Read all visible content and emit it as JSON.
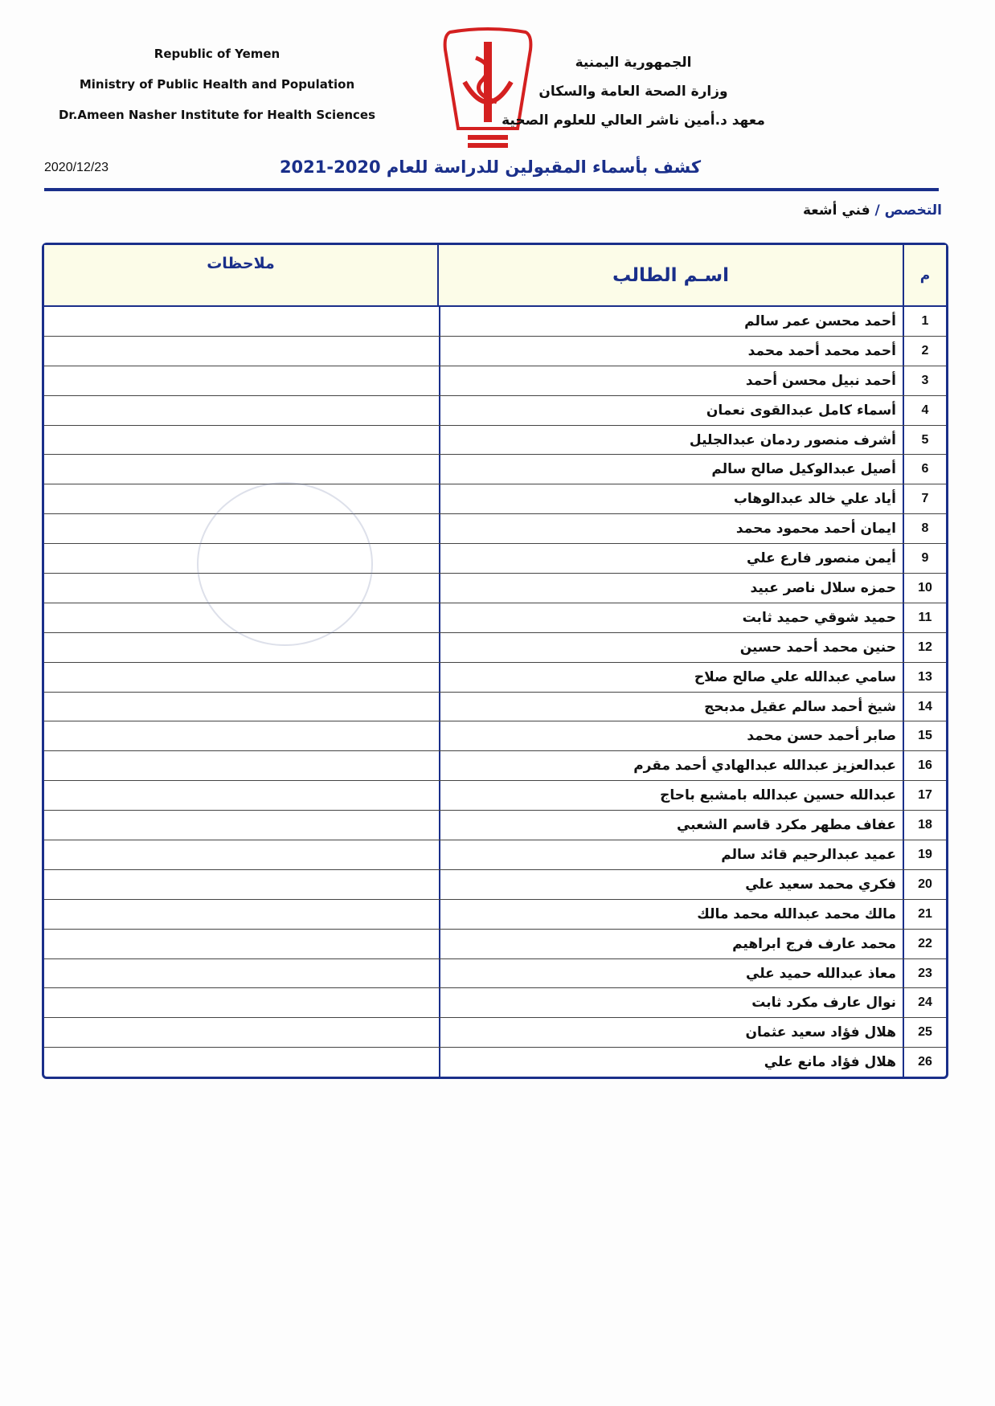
{
  "header": {
    "english": [
      "Republic of Yemen",
      "Ministry of Public Health and Population",
      "Dr.Ameen Nasher Institute for Health Sciences"
    ],
    "arabic": [
      "الجمهورية اليمنية",
      "وزارة الصحة العامة والسكان",
      "معهد د.أمين ناشر العالي للعلوم الصحية"
    ],
    "logo_color": "#d42020"
  },
  "date": "2020/12/23",
  "title": "كشف بأسماء المقبولين للدراسة للعام 2020-2021",
  "specialty": {
    "label": "التخصص /",
    "value": "فني أشعة"
  },
  "table": {
    "columns": {
      "number": "م",
      "name": "اسـم الطالب",
      "notes": "ملاحظات"
    },
    "rows": [
      {
        "n": "1",
        "name": "أحمد محسن عمر سالم"
      },
      {
        "n": "2",
        "name": "أحمد محمد أحمد محمد"
      },
      {
        "n": "3",
        "name": "أحمد نبيل محسن أحمد"
      },
      {
        "n": "4",
        "name": "أسماء كامل عبدالقوى نعمان"
      },
      {
        "n": "5",
        "name": "أشرف منصور ردمان عبدالجليل"
      },
      {
        "n": "6",
        "name": "أصيل عبدالوكيل صالح سالم"
      },
      {
        "n": "7",
        "name": "أياد علي خالد عبدالوهاب"
      },
      {
        "n": "8",
        "name": "ايمان أحمد محمود محمد"
      },
      {
        "n": "9",
        "name": "أيمن منصور فارع علي"
      },
      {
        "n": "10",
        "name": "حمزه سلال ناصر عبيد"
      },
      {
        "n": "11",
        "name": "حميد شوقي حميد ثابت"
      },
      {
        "n": "12",
        "name": "حنين محمد أحمد حسين"
      },
      {
        "n": "13",
        "name": "سامي عبدالله علي صالح صلاح"
      },
      {
        "n": "14",
        "name": "شيخ أحمد سالم عقيل مدبحج"
      },
      {
        "n": "15",
        "name": "صابر أحمد حسن محمد"
      },
      {
        "n": "16",
        "name": "عبدالعزيز عبدالله عبدالهادي أحمد مقرم"
      },
      {
        "n": "17",
        "name": "عبدالله حسين عبدالله بامشبع باحاج"
      },
      {
        "n": "18",
        "name": "عفاف مطهر مكرد قاسم الشعبي"
      },
      {
        "n": "19",
        "name": "عميد عبدالرحيم قائد سالم"
      },
      {
        "n": "20",
        "name": "فكري محمد سعيد علي"
      },
      {
        "n": "21",
        "name": "مالك محمد عبدالله محمد مالك"
      },
      {
        "n": "22",
        "name": "محمد عارف فرج ابراهيم"
      },
      {
        "n": "23",
        "name": "معاذ عبدالله حميد علي"
      },
      {
        "n": "24",
        "name": "نوال عارف مكرد ثابت"
      },
      {
        "n": "25",
        "name": "هلال فؤاد سعيد عثمان"
      },
      {
        "n": "26",
        "name": "هلال فؤاد مانع علي"
      }
    ]
  }
}
